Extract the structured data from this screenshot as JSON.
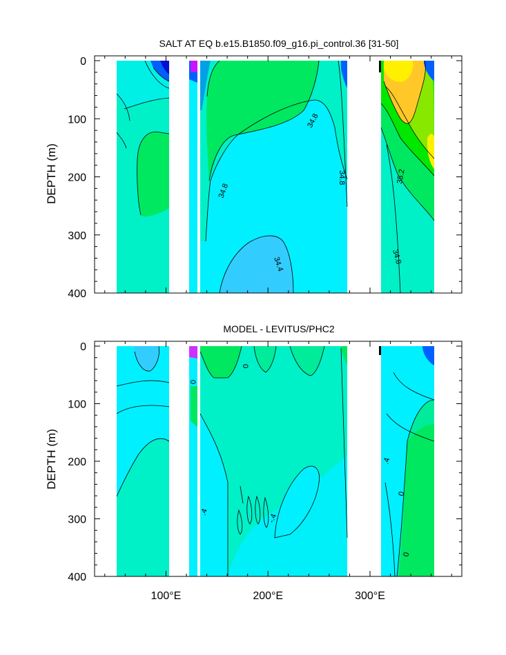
{
  "chart_data": [
    {
      "type": "heatmap",
      "title": "SALT AT EQ b.e15.B1850.f09_g16.pi_control.36 [31-50]",
      "xlabel": "",
      "ylabel": "DEPTH (m)",
      "xlim": [
        30,
        390
      ],
      "ylim": [
        400,
        0
      ],
      "y_reversed": true,
      "yticks": [
        "0",
        "100",
        "200",
        "300",
        "400"
      ],
      "ytick_values": [
        0,
        100,
        200,
        300,
        400
      ],
      "contour_labels": [
        "34.8",
        "34.8",
        "34.8",
        "35.2",
        "34.8",
        "34.4"
      ],
      "land_gaps_lon": [
        [
          97,
          118
        ],
        [
          127,
          130
        ],
        [
          279,
          313
        ],
        [
          368,
          390
        ]
      ],
      "ocean_segments_lon": [
        [
          43,
          97
        ],
        [
          118,
          127
        ],
        [
          130,
          279
        ],
        [
          313,
          368
        ]
      ],
      "value_range": [
        33.4,
        35.6
      ],
      "background_value": 34.6
    },
    {
      "type": "heatmap",
      "title": "MODEL - LEVITUS/PHC2",
      "xlabel": "",
      "ylabel": "DEPTH (m)",
      "xlim": [
        30,
        390
      ],
      "ylim": [
        400,
        0
      ],
      "y_reversed": true,
      "yticks": [
        "0",
        "100",
        "200",
        "300",
        "400"
      ],
      "ytick_values": [
        0,
        100,
        200,
        300,
        400
      ],
      "xticks": [
        "100°E",
        "200°E",
        "300°E"
      ],
      "xtick_values": [
        100,
        200,
        300
      ],
      "contour_labels": [
        "0",
        "0",
        ".4",
        "-.4",
        ".4",
        "0",
        "0"
      ],
      "land_gaps_lon": [
        [
          97,
          118
        ],
        [
          127,
          130
        ],
        [
          279,
          313
        ],
        [
          368,
          390
        ]
      ],
      "ocean_segments_lon": [
        [
          43,
          97
        ],
        [
          118,
          127
        ],
        [
          130,
          279
        ],
        [
          313,
          368
        ]
      ],
      "value_range": [
        -1.0,
        1.0
      ],
      "background_value": 0.0
    }
  ],
  "colors": {
    "cyan": "#00f0ff",
    "teal": "#00f0c8",
    "aqua_green": "#00eca0",
    "green": "#00e860",
    "bright_green": "#00e800",
    "yellow_green": "#88e800",
    "yellow": "#fff000",
    "orange": "#ffc828",
    "light_blue": "#33ccff",
    "blue": "#0060ff",
    "dark_blue": "#0010d0",
    "magenta": "#ff00ff"
  }
}
